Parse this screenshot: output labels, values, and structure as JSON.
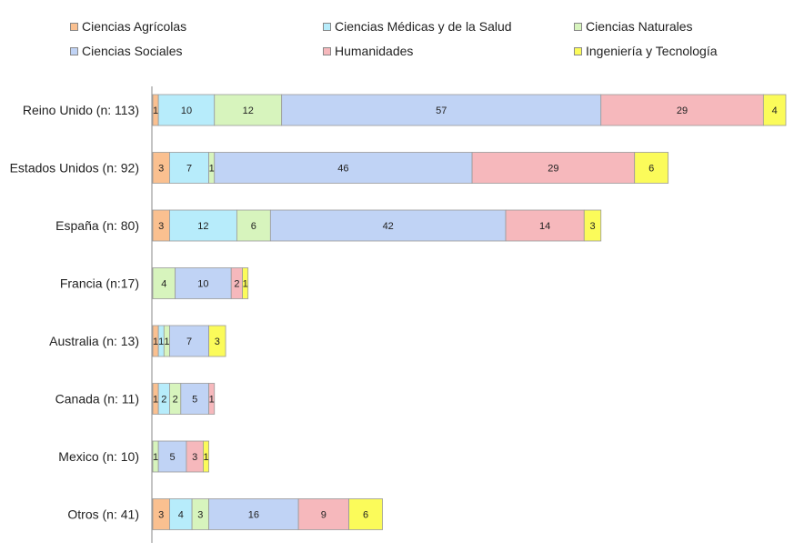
{
  "chart_data": {
    "type": "bar",
    "orientation": "horizontal",
    "stacked": true,
    "grid": false,
    "legend_position": "top",
    "categories": [
      "Reino Unido (n: 113)",
      "Estados Unidos (n: 92)",
      "España (n: 80)",
      "Francia (n:17)",
      "Australia (n: 13)",
      "Canada (n: 11)",
      "Mexico (n: 10)",
      "Otros (n: 41)"
    ],
    "series": [
      {
        "name": "Ciencias Agrícolas",
        "color": "#fac090",
        "values": [
          1,
          3,
          3,
          0,
          1,
          1,
          0,
          3
        ]
      },
      {
        "name": "Ciencias Médicas y de la Salud",
        "color": "#b7ecfb",
        "values": [
          10,
          7,
          12,
          0,
          1,
          2,
          0,
          4
        ]
      },
      {
        "name": "Ciencias Naturales",
        "color": "#d7f4bd",
        "values": [
          12,
          1,
          6,
          4,
          1,
          2,
          1,
          3
        ]
      },
      {
        "name": "Ciencias Sociales",
        "color": "#c0d3f5",
        "values": [
          57,
          46,
          42,
          10,
          7,
          5,
          5,
          16
        ]
      },
      {
        "name": "Humanidades",
        "color": "#f6b8bc",
        "values": [
          29,
          29,
          14,
          2,
          0,
          1,
          3,
          9
        ]
      },
      {
        "name": "Ingeniería y Tecnología",
        "color": "#fbfb5a",
        "values": [
          4,
          6,
          3,
          1,
          3,
          0,
          1,
          6
        ]
      }
    ],
    "xlim": [
      0,
      113
    ]
  }
}
